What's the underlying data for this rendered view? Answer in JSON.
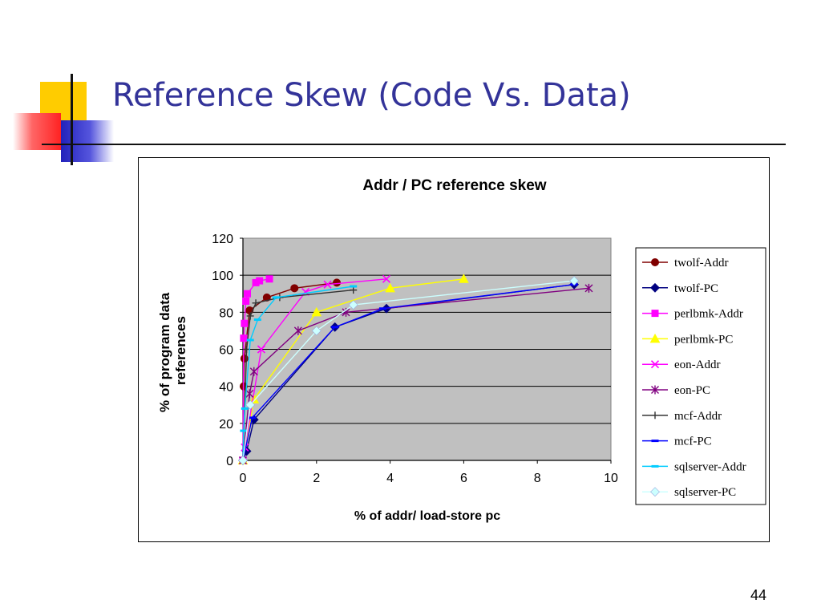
{
  "slide": {
    "title": "Reference Skew (Code Vs. Data)",
    "page_number": "44"
  },
  "colors": {
    "title": "#333399",
    "plot_background": "#C0C0C0",
    "deco_yellow": "#FFCC00",
    "deco_red": "#FF3333",
    "deco_blue": "#3333CC"
  },
  "chart_data": {
    "type": "line",
    "title": "Addr / PC reference skew",
    "xlabel": "% of addr/ load-store pc",
    "ylabel": "% of program data references",
    "xlim": [
      0,
      10
    ],
    "ylim": [
      0,
      120
    ],
    "xticks": [
      "0",
      "2",
      "4",
      "6",
      "8",
      "10"
    ],
    "yticks": [
      "0",
      "20",
      "40",
      "60",
      "80",
      "100",
      "120"
    ],
    "grid": "horizontal",
    "legend": "right",
    "series": [
      {
        "name": "twolf-Addr",
        "color": "#800000",
        "marker": "circle",
        "x": [
          0,
          0.02,
          0.04,
          0.18,
          0.65,
          1.4,
          2.55
        ],
        "y": [
          0,
          40,
          55,
          81,
          88,
          93,
          96
        ]
      },
      {
        "name": "twolf-PC",
        "color": "#000080",
        "marker": "diamond",
        "x": [
          0,
          0.1,
          0.3,
          2.5,
          3.9,
          9.0
        ],
        "y": [
          0,
          5,
          22,
          72,
          82,
          95
        ]
      },
      {
        "name": "perlbmk-Addr",
        "color": "#FF00FF",
        "marker": "square",
        "x": [
          0,
          0.02,
          0.04,
          0.08,
          0.12,
          0.35,
          0.45,
          0.72
        ],
        "y": [
          0,
          66,
          74,
          86,
          90,
          96,
          97,
          98
        ]
      },
      {
        "name": "perlbmk-PC",
        "color": "#FFFF00",
        "marker": "triangle",
        "x": [
          0,
          0.3,
          2.0,
          4.0,
          6.0
        ],
        "y": [
          0,
          33,
          80,
          93,
          98
        ]
      },
      {
        "name": "eon-Addr",
        "color": "#FF00FF",
        "marker": "x",
        "x": [
          0,
          0.05,
          0.5,
          1.7,
          2.3,
          3.9
        ],
        "y": [
          0,
          7,
          60,
          91,
          95,
          98
        ]
      },
      {
        "name": "eon-PC",
        "color": "#800080",
        "marker": "star",
        "x": [
          0,
          0.18,
          0.3,
          1.5,
          2.8,
          9.4
        ],
        "y": [
          0,
          36,
          48,
          70,
          80,
          93
        ]
      },
      {
        "name": "mcf-Addr",
        "color": "#333333",
        "marker": "plus",
        "x": [
          0,
          0.1,
          0.2,
          0.35,
          1.0,
          3.0
        ],
        "y": [
          0,
          60,
          78,
          85,
          88,
          92
        ]
      },
      {
        "name": "mcf-PC",
        "color": "#0000FF",
        "marker": "dash",
        "x": [
          0,
          0.25,
          2.5,
          3.8,
          9.0
        ],
        "y": [
          0,
          23,
          72,
          82,
          95
        ]
      },
      {
        "name": "sqlserver-Addr",
        "color": "#00CCFF",
        "marker": "dash",
        "x": [
          0,
          0.02,
          0.05,
          0.2,
          0.4,
          0.9,
          3.0
        ],
        "y": [
          0,
          16,
          28,
          65,
          76,
          88,
          94
        ]
      },
      {
        "name": "sqlserver-PC",
        "color": "#CCFFFF",
        "marker": "diamond",
        "x": [
          0,
          0.2,
          2.0,
          3.0,
          9.0
        ],
        "y": [
          0,
          30,
          70,
          84,
          97
        ]
      }
    ]
  }
}
